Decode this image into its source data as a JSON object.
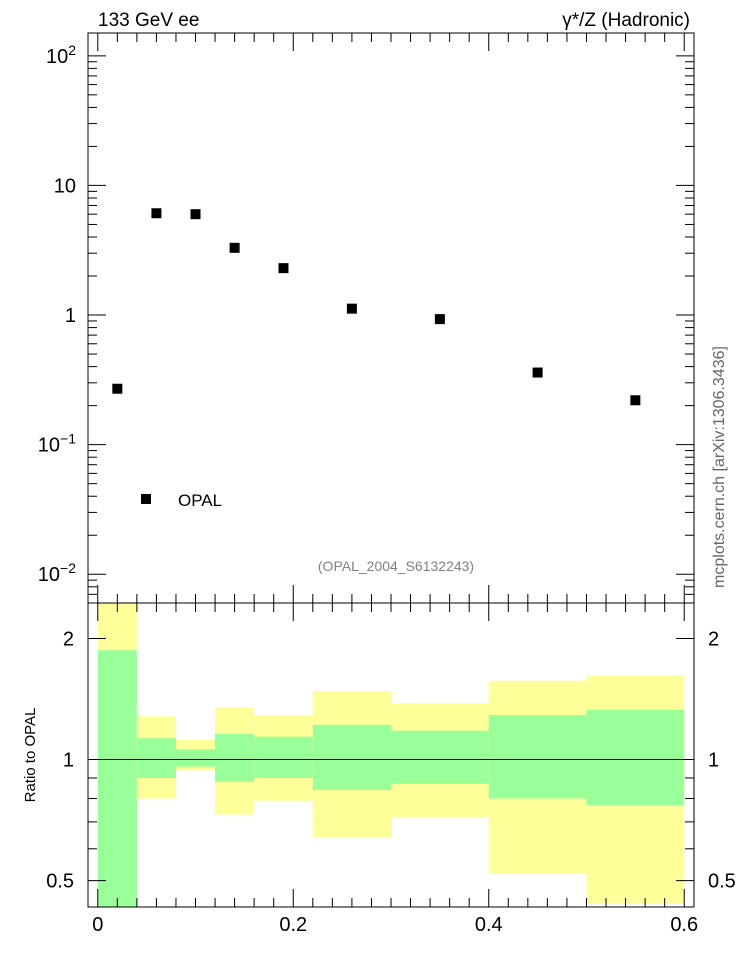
{
  "header": {
    "left": "133 GeV ee",
    "right": "γ*/Z (Hadronic)"
  },
  "side_label": "mcplots.cern.ch [arXiv:1306.3436]",
  "watermark": "(OPAL_2004_S6132243)",
  "legend": {
    "label": "OPAL"
  },
  "ratio_ylabel": "Ratio to OPAL",
  "colors": {
    "yellow_band": "#ffff99",
    "green_band": "#99ff99",
    "marker": "#000000",
    "watermark": "#808080"
  },
  "chart_data": [
    {
      "type": "scatter",
      "yscale": "log",
      "xlim": [
        -0.01,
        0.61
      ],
      "ylim": [
        0.006,
        150
      ],
      "series": [
        {
          "name": "OPAL",
          "x": [
            0.02,
            0.06,
            0.1,
            0.14,
            0.19,
            0.26,
            0.35,
            0.45,
            0.55
          ],
          "y": [
            0.27,
            6.1,
            6.0,
            3.3,
            2.3,
            1.12,
            0.93,
            0.36,
            0.22
          ]
        }
      ],
      "yticks": [
        {
          "value": 0.01,
          "base": "10",
          "exp": "−2"
        },
        {
          "value": 0.1,
          "base": "10",
          "exp": "−1"
        },
        {
          "value": 1,
          "base": "1",
          "exp": ""
        },
        {
          "value": 10,
          "base": "10",
          "exp": ""
        },
        {
          "value": 100,
          "base": "10",
          "exp": "2"
        }
      ],
      "legend_position": "bottom-left"
    },
    {
      "type": "area",
      "ylabel": "Ratio to OPAL",
      "yscale": "log",
      "xlim": [
        -0.01,
        0.61
      ],
      "ylim": [
        0.43,
        2.45
      ],
      "reference": 1,
      "bins": [
        {
          "lo": 0.0,
          "hi": 0.04,
          "yellow": [
            0.4,
            2.45
          ],
          "green": [
            0.4,
            1.87
          ]
        },
        {
          "lo": 0.04,
          "hi": 0.08,
          "yellow": [
            0.8,
            1.28
          ],
          "green": [
            0.9,
            1.13
          ]
        },
        {
          "lo": 0.08,
          "hi": 0.12,
          "yellow": [
            0.94,
            1.12
          ],
          "green": [
            0.96,
            1.06
          ]
        },
        {
          "lo": 0.12,
          "hi": 0.16,
          "yellow": [
            0.73,
            1.35
          ],
          "green": [
            0.88,
            1.16
          ]
        },
        {
          "lo": 0.16,
          "hi": 0.22,
          "yellow": [
            0.79,
            1.29
          ],
          "green": [
            0.9,
            1.14
          ]
        },
        {
          "lo": 0.22,
          "hi": 0.3,
          "yellow": [
            0.64,
            1.48
          ],
          "green": [
            0.84,
            1.22
          ]
        },
        {
          "lo": 0.3,
          "hi": 0.4,
          "yellow": [
            0.72,
            1.38
          ],
          "green": [
            0.87,
            1.18
          ]
        },
        {
          "lo": 0.4,
          "hi": 0.5,
          "yellow": [
            0.52,
            1.57
          ],
          "green": [
            0.8,
            1.29
          ]
        },
        {
          "lo": 0.5,
          "hi": 0.6,
          "yellow": [
            0.44,
            1.62
          ],
          "green": [
            0.77,
            1.33
          ]
        }
      ],
      "yticks": [
        0.5,
        1,
        2
      ],
      "xticks": [
        0,
        0.2,
        0.4,
        0.6
      ],
      "xtick_labels": [
        "0",
        "0.2",
        "0.4",
        "0.6"
      ]
    }
  ]
}
